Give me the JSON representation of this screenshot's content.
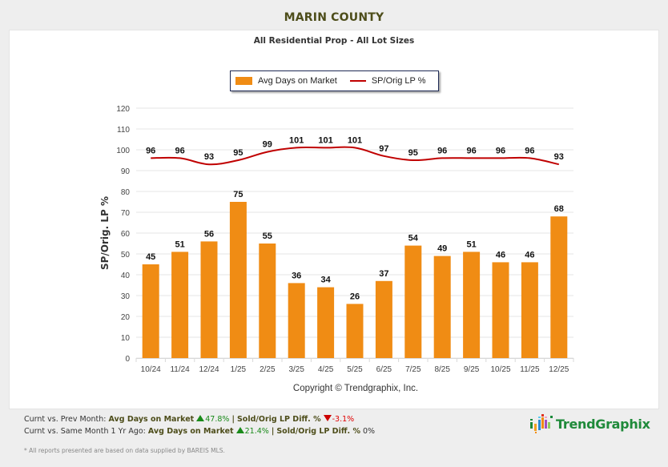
{
  "header": {
    "county_title": "MARIN COUNTY",
    "subtitle": "All Residential Prop - All Lot Sizes"
  },
  "legend": {
    "items": [
      {
        "label": "Avg Days on Market",
        "type": "bar",
        "color": "#f08c14"
      },
      {
        "label": "SP/Orig LP %",
        "type": "line",
        "color": "#c00000"
      }
    ]
  },
  "chart_data": {
    "type": "bar+line",
    "title": "All Residential Prop - All Lot Sizes",
    "xlabel": "",
    "ylabel": "SP/Orig. LP %",
    "ylim": [
      0,
      120
    ],
    "yticks": [
      0,
      10,
      20,
      30,
      40,
      50,
      60,
      70,
      80,
      90,
      100,
      110,
      120
    ],
    "grid": true,
    "legend_position": "top-center",
    "categories": [
      "10/24",
      "11/24",
      "12/24",
      "1/25",
      "2/25",
      "3/25",
      "4/25",
      "5/25",
      "6/25",
      "7/25",
      "8/25",
      "9/25",
      "10/25",
      "11/25",
      "12/25"
    ],
    "series": [
      {
        "name": "Avg Days on Market",
        "type": "bar",
        "color": "#f08c14",
        "values": [
          45,
          51,
          56,
          75,
          55,
          36,
          34,
          26,
          37,
          54,
          49,
          51,
          46,
          46,
          68
        ]
      },
      {
        "name": "SP/Orig LP %",
        "type": "line",
        "color": "#c00000",
        "values": [
          96,
          96,
          93,
          95,
          99,
          101,
          101,
          101,
          97,
          95,
          96,
          96,
          96,
          96,
          93
        ]
      }
    ],
    "copyright": "Copyright © Trendgraphix, Inc."
  },
  "footer": {
    "prev_month": {
      "prefix": "Curnt vs. Prev Month:",
      "metric1_label": "Avg Days on Market",
      "metric1_direction": "up",
      "metric1_value": "47.8%",
      "separator": "|",
      "metric2_label": "Sold/Orig LP Diff. %",
      "metric2_direction": "down",
      "metric2_value": "-3.1%"
    },
    "year_ago": {
      "prefix": "Curnt vs. Same Month 1 Yr Ago:",
      "metric1_label": "Avg Days on Market",
      "metric1_direction": "up",
      "metric1_value": "21.4%",
      "separator": "|",
      "metric2_label": "Sold/Orig LP Diff. %",
      "metric2_value": "0%"
    },
    "note": "* All reports presented are based on data supplied by BAREIS MLS.",
    "logo_text": "TrendGraphix"
  }
}
